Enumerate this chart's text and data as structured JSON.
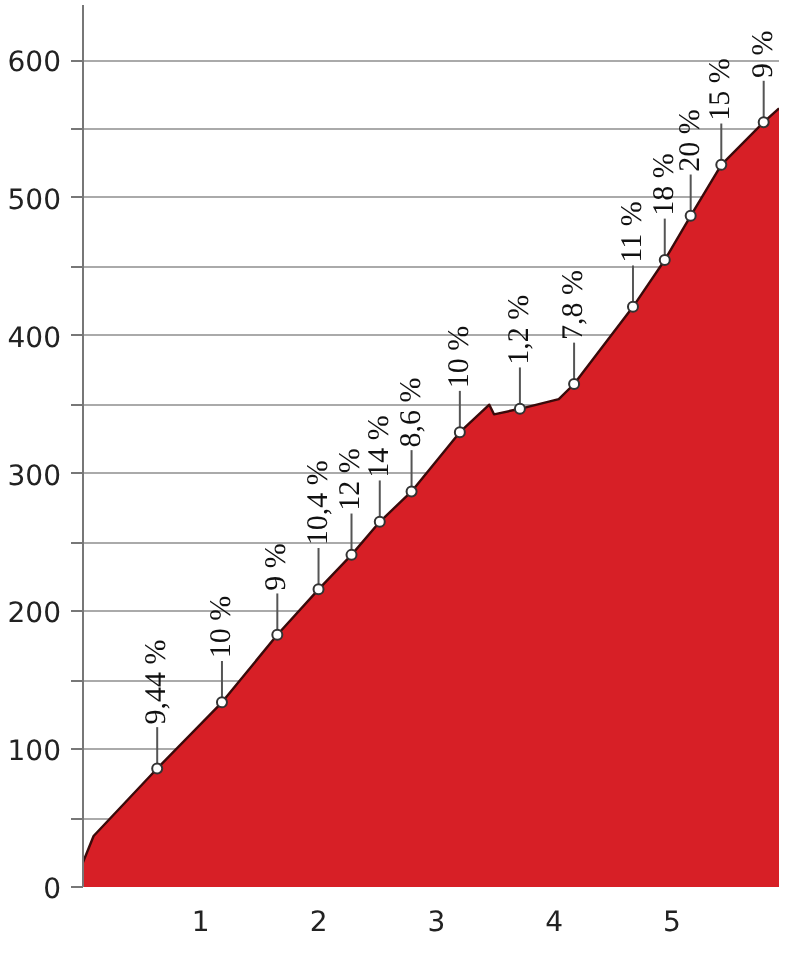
{
  "chart_data": {
    "type": "area",
    "x": [
      0,
      0.09,
      0.63,
      1.18,
      1.65,
      2.0,
      2.28,
      2.52,
      2.79,
      3.2,
      3.45,
      3.49,
      3.71,
      4.04,
      4.17,
      4.67,
      4.94,
      5.16,
      5.42,
      5.78,
      5.91
    ],
    "series": [
      {
        "color": "#d71f26",
        "values": [
          18,
          37,
          86,
          134,
          183,
          216,
          241,
          265,
          287,
          330,
          350,
          343,
          347,
          354,
          365,
          421,
          455,
          487,
          524,
          555,
          565
        ]
      },
      {
        "type": "scatter",
        "marker": "circle",
        "color": "#ffffff",
        "x": [
          0.63,
          1.18,
          1.65,
          2.0,
          2.28,
          2.52,
          2.79,
          3.2,
          3.71,
          4.17,
          4.67,
          4.94,
          5.16,
          5.42,
          5.78
        ],
        "values": [
          86,
          134,
          183,
          216,
          241,
          265,
          287,
          330,
          347,
          365,
          421,
          455,
          487,
          524,
          555
        ]
      }
    ],
    "annotations": [
      {
        "text": "9,44 %",
        "x": 0.63,
        "y": 86
      },
      {
        "text": "10 %",
        "x": 1.18,
        "y": 134
      },
      {
        "text": "9 %",
        "x": 1.65,
        "y": 183
      },
      {
        "text": "10,4 %",
        "x": 2.0,
        "y": 216
      },
      {
        "text": "12 %",
        "x": 2.28,
        "y": 241
      },
      {
        "text": "14 %",
        "x": 2.52,
        "y": 265
      },
      {
        "text": "8,6 %",
        "x": 2.79,
        "y": 287
      },
      {
        "text": "10 %",
        "x": 3.2,
        "y": 330
      },
      {
        "text": "1,2 %",
        "x": 3.71,
        "y": 347
      },
      {
        "text": "7,8 %",
        "x": 4.17,
        "y": 365
      },
      {
        "text": "11 %",
        "x": 4.67,
        "y": 421
      },
      {
        "text": "18 %",
        "x": 4.94,
        "y": 455
      },
      {
        "text": "20 %",
        "x": 5.16,
        "y": 487
      },
      {
        "text": "15 %",
        "x": 5.42,
        "y": 524
      },
      {
        "text": "9 %",
        "x": 5.78,
        "y": 555
      }
    ],
    "xlim": [
      0,
      5.91
    ],
    "xticks": [
      1,
      2,
      3,
      4,
      5
    ],
    "ylim": [
      0,
      640
    ],
    "yticks": [
      0,
      {
        "value": 50,
        "label": null
      },
      100,
      {
        "value": 150,
        "label": null
      },
      200,
      {
        "value": 250,
        "label": null
      },
      300,
      {
        "value": 350,
        "label": null
      },
      400,
      {
        "value": 450,
        "label": null
      },
      500,
      {
        "value": 550,
        "label": null
      },
      600
    ],
    "grid": "y"
  }
}
